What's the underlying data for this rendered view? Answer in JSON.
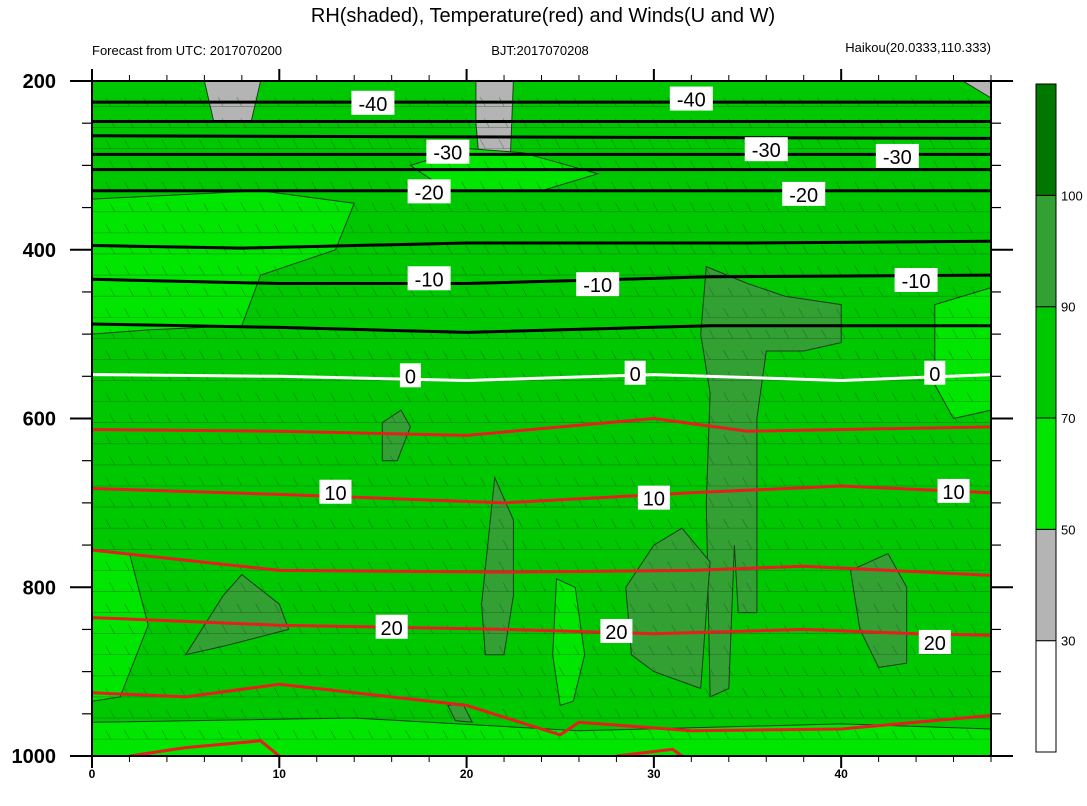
{
  "chart_data": {
    "type": "contour",
    "title": "RH(shaded), Temperature(red) and Winds(U and W)",
    "subtitle_left": "Forecast from UTC: 2017070200",
    "subtitle_center": "BJT:2017070208",
    "subtitle_right": "Haikou(20.0333,110.333)",
    "xlim": [
      0,
      48
    ],
    "x_ticks": [
      0,
      10,
      20,
      30,
      40
    ],
    "ylim": [
      200,
      1000
    ],
    "y_reversed": true,
    "y_ticks": [
      200,
      400,
      600,
      800,
      1000
    ],
    "y_minor_ticks": [
      250,
      300,
      350,
      450,
      500,
      550,
      650,
      700,
      750,
      850,
      900,
      950
    ],
    "colorbar": {
      "levels": [
        30,
        50,
        70,
        90,
        100
      ],
      "level_labels": [
        "30",
        "50",
        "70",
        "90",
        "100"
      ],
      "colors": [
        "#ffffff",
        "#b4b4b4",
        "#00e600",
        "#00c800",
        "#32a032",
        "#007800"
      ]
    },
    "rh_background": 80,
    "rh_patches": [
      {
        "name": "dry-low-left",
        "rh": 40,
        "points": [
          [
            0,
            352
          ],
          [
            5,
            357
          ],
          [
            9,
            390
          ],
          [
            8,
            420
          ],
          [
            4,
            455
          ],
          [
            0,
            475
          ]
        ]
      },
      {
        "name": "dry-top-a",
        "rh": 40,
        "points": [
          [
            6,
            200
          ],
          [
            9,
            200
          ],
          [
            8.5,
            248
          ],
          [
            6.5,
            248
          ]
        ]
      },
      {
        "name": "dry-top-b",
        "rh": 40,
        "points": [
          [
            20.5,
            200
          ],
          [
            22.5,
            200
          ],
          [
            22.3,
            310
          ],
          [
            20.7,
            300
          ],
          [
            20.5,
            250
          ]
        ]
      },
      {
        "name": "dry-top-right",
        "rh": 40,
        "points": [
          [
            46.5,
            200
          ],
          [
            48,
            200
          ],
          [
            48,
            220
          ]
        ]
      },
      {
        "name": "dry-bottom-a",
        "rh": 40,
        "points": [
          [
            2,
            988
          ],
          [
            6,
            982
          ],
          [
            11,
            986
          ],
          [
            10,
            1000
          ],
          [
            2,
            1000
          ]
        ]
      },
      {
        "name": "dry-bottom-b",
        "rh": 40,
        "points": [
          [
            29,
            990
          ],
          [
            33,
            985
          ],
          [
            34,
            1000
          ],
          [
            29,
            1000
          ]
        ]
      },
      {
        "name": "moist-left-upper",
        "rh": 60,
        "points": [
          [
            0,
            340
          ],
          [
            9,
            330
          ],
          [
            14,
            345
          ],
          [
            13,
            400
          ],
          [
            9,
            430
          ],
          [
            8,
            490
          ],
          [
            3,
            495
          ],
          [
            0,
            500
          ]
        ]
      },
      {
        "name": "moist-top-mid",
        "rh": 60,
        "points": [
          [
            17,
            300
          ],
          [
            20,
            280
          ],
          [
            23,
            285
          ],
          [
            27,
            310
          ],
          [
            24,
            330
          ],
          [
            19,
            330
          ]
        ]
      },
      {
        "name": "moist-right-mid",
        "rh": 60,
        "points": [
          [
            45,
            465
          ],
          [
            48,
            445
          ],
          [
            48,
            590
          ],
          [
            46,
            600
          ],
          [
            45,
            560
          ]
        ]
      },
      {
        "name": "moist-streak",
        "rh": 60,
        "points": [
          [
            24.8,
            790
          ],
          [
            25.8,
            800
          ],
          [
            26.3,
            880
          ],
          [
            25.7,
            935
          ],
          [
            25,
            940
          ],
          [
            24.6,
            880
          ]
        ]
      },
      {
        "name": "moist-bottom-band",
        "rh": 60,
        "points": [
          [
            0,
            960
          ],
          [
            14,
            955
          ],
          [
            26,
            970
          ],
          [
            40,
            962
          ],
          [
            48,
            968
          ],
          [
            48,
            1000
          ],
          [
            0,
            1000
          ]
        ]
      },
      {
        "name": "moist-lower-left",
        "rh": 60,
        "points": [
          [
            0,
            755
          ],
          [
            2,
            760
          ],
          [
            3,
            845
          ],
          [
            1.5,
            930
          ],
          [
            0,
            935
          ]
        ]
      },
      {
        "name": "wet-column",
        "rh": 95,
        "points": [
          [
            32.8,
            420
          ],
          [
            35,
            440
          ],
          [
            37,
            455
          ],
          [
            40,
            465
          ],
          [
            40,
            510
          ],
          [
            38,
            520
          ],
          [
            36,
            520
          ],
          [
            35.5,
            600
          ],
          [
            35.5,
            830
          ],
          [
            34.5,
            830
          ],
          [
            34.3,
            750
          ],
          [
            34,
            920
          ],
          [
            33,
            930
          ],
          [
            32.8,
            700
          ],
          [
            33,
            570
          ],
          [
            32.5,
            500
          ]
        ]
      },
      {
        "name": "wet-center",
        "rh": 95,
        "points": [
          [
            28.5,
            800
          ],
          [
            30,
            750
          ],
          [
            31.5,
            730
          ],
          [
            33,
            770
          ],
          [
            32.5,
            920
          ],
          [
            30,
            900
          ],
          [
            28.8,
            880
          ]
        ]
      },
      {
        "name": "wet-left",
        "rh": 95,
        "points": [
          [
            5,
            880
          ],
          [
            7,
            810
          ],
          [
            8,
            785
          ],
          [
            10,
            820
          ],
          [
            10.5,
            850
          ],
          [
            7,
            870
          ]
        ]
      },
      {
        "name": "wet-narrow",
        "rh": 95,
        "points": [
          [
            20.8,
            820
          ],
          [
            21.5,
            670
          ],
          [
            22.5,
            720
          ],
          [
            22.5,
            810
          ],
          [
            22,
            880
          ],
          [
            21,
            880
          ]
        ]
      },
      {
        "name": "wet-small-a",
        "rh": 95,
        "points": [
          [
            15.5,
            605
          ],
          [
            16.5,
            590
          ],
          [
            17,
            610
          ],
          [
            16.3,
            650
          ],
          [
            15.5,
            650
          ]
        ]
      },
      {
        "name": "wet-small-b",
        "rh": 95,
        "points": [
          [
            19,
            940
          ],
          [
            19.8,
            938
          ],
          [
            20.3,
            960
          ],
          [
            19.4,
            958
          ]
        ]
      },
      {
        "name": "wet-right",
        "rh": 95,
        "points": [
          [
            40.5,
            780
          ],
          [
            42.5,
            760
          ],
          [
            43.5,
            800
          ],
          [
            43.5,
            890
          ],
          [
            42,
            895
          ],
          [
            41,
            850
          ]
        ]
      }
    ],
    "temperature_contours": [
      {
        "level": -40,
        "color": "#000000",
        "label": "-40",
        "points": [
          [
            0,
            225
          ],
          [
            48,
            225
          ]
        ]
      },
      {
        "level": -45,
        "color": "#000000",
        "label": "",
        "points": [
          [
            0,
            248
          ],
          [
            48,
            248
          ]
        ]
      },
      {
        "level": -35,
        "color": "#000000",
        "label": "",
        "points": [
          [
            0,
            265
          ],
          [
            48,
            268
          ]
        ]
      },
      {
        "level": -30,
        "color": "#000000",
        "label": "-30",
        "points": [
          [
            0,
            287
          ],
          [
            48,
            287
          ]
        ]
      },
      {
        "level": -25,
        "color": "#000000",
        "label": "",
        "points": [
          [
            0,
            305
          ],
          [
            48,
            305
          ]
        ]
      },
      {
        "level": -20,
        "color": "#000000",
        "label": "-20",
        "points": [
          [
            0,
            330
          ],
          [
            48,
            330
          ]
        ]
      },
      {
        "level": -15,
        "color": "#000000",
        "label": "",
        "points": [
          [
            0,
            395
          ],
          [
            8,
            398
          ],
          [
            20,
            392
          ],
          [
            35,
            392
          ],
          [
            48,
            390
          ]
        ]
      },
      {
        "level": -10,
        "color": "#000000",
        "label": "-10",
        "points": [
          [
            0,
            435
          ],
          [
            10,
            440
          ],
          [
            20,
            440
          ],
          [
            33,
            432
          ],
          [
            48,
            430
          ]
        ]
      },
      {
        "level": -5,
        "color": "#000000",
        "label": "",
        "points": [
          [
            0,
            488
          ],
          [
            10,
            492
          ],
          [
            20,
            498
          ],
          [
            33,
            490
          ],
          [
            48,
            490
          ]
        ]
      },
      {
        "level": 0,
        "color": "#ffffff",
        "label": "0",
        "points": [
          [
            0,
            548
          ],
          [
            10,
            550
          ],
          [
            20,
            555
          ],
          [
            30,
            548
          ],
          [
            40,
            555
          ],
          [
            48,
            548
          ]
        ]
      },
      {
        "level": 5,
        "color": "#e61e1e",
        "label": "",
        "points": [
          [
            0,
            613
          ],
          [
            10,
            615
          ],
          [
            20,
            620
          ],
          [
            30,
            600
          ],
          [
            35,
            615
          ],
          [
            48,
            610
          ]
        ]
      },
      {
        "level": 10,
        "color": "#e61e1e",
        "label": "10",
        "points": [
          [
            0,
            683
          ],
          [
            10,
            690
          ],
          [
            22,
            700
          ],
          [
            32,
            688
          ],
          [
            40,
            680
          ],
          [
            48,
            688
          ]
        ]
      },
      {
        "level": 15,
        "color": "#e61e1e",
        "label": "",
        "points": [
          [
            0,
            756
          ],
          [
            10,
            780
          ],
          [
            22,
            782
          ],
          [
            32,
            780
          ],
          [
            38,
            775
          ],
          [
            48,
            786
          ]
        ]
      },
      {
        "level": 20,
        "color": "#e61e1e",
        "label": "20",
        "points": [
          [
            0,
            836
          ],
          [
            10,
            845
          ],
          [
            22,
            850
          ],
          [
            30,
            855
          ],
          [
            38,
            850
          ],
          [
            44,
            855
          ],
          [
            48,
            857
          ]
        ]
      },
      {
        "level": 25,
        "color": "#e61e1e",
        "label": "",
        "points": [
          [
            0,
            925
          ],
          [
            5,
            930
          ],
          [
            10,
            915
          ],
          [
            20,
            940
          ],
          [
            25,
            975
          ],
          [
            26,
            960
          ],
          [
            32,
            970
          ],
          [
            40,
            968
          ],
          [
            48,
            952
          ]
        ]
      },
      {
        "level": 30,
        "color": "#e61e1e",
        "label": "",
        "points": [
          [
            2,
            1000
          ],
          [
            5,
            990
          ],
          [
            9,
            982
          ],
          [
            10,
            1000
          ]
        ]
      },
      {
        "level": 30.5,
        "color": "#e61e1e",
        "label": "",
        "points": [
          [
            28,
            1000
          ],
          [
            31,
            992
          ],
          [
            31.5,
            1000
          ]
        ]
      }
    ],
    "contour_labels": [
      {
        "text": "-40",
        "x": 15,
        "y": 227
      },
      {
        "text": "-40",
        "x": 32,
        "y": 222
      },
      {
        "text": "-30",
        "x": 19,
        "y": 285
      },
      {
        "text": "-30",
        "x": 36,
        "y": 282
      },
      {
        "text": "-30",
        "x": 43,
        "y": 290
      },
      {
        "text": "-20",
        "x": 18,
        "y": 332
      },
      {
        "text": "-20",
        "x": 38,
        "y": 335
      },
      {
        "text": "-10",
        "x": 18,
        "y": 435
      },
      {
        "text": "-10",
        "x": 27,
        "y": 442
      },
      {
        "text": "-10",
        "x": 44,
        "y": 437
      },
      {
        "text": "0",
        "x": 17,
        "y": 550
      },
      {
        "text": "0",
        "x": 29,
        "y": 547
      },
      {
        "text": "0",
        "x": 45,
        "y": 547
      },
      {
        "text": "10",
        "x": 13,
        "y": 688
      },
      {
        "text": "10",
        "x": 30,
        "y": 695
      },
      {
        "text": "10",
        "x": 46,
        "y": 687
      },
      {
        "text": "20",
        "x": 16,
        "y": 848
      },
      {
        "text": "20",
        "x": 28,
        "y": 853
      },
      {
        "text": "20",
        "x": 45,
        "y": 866
      }
    ]
  }
}
